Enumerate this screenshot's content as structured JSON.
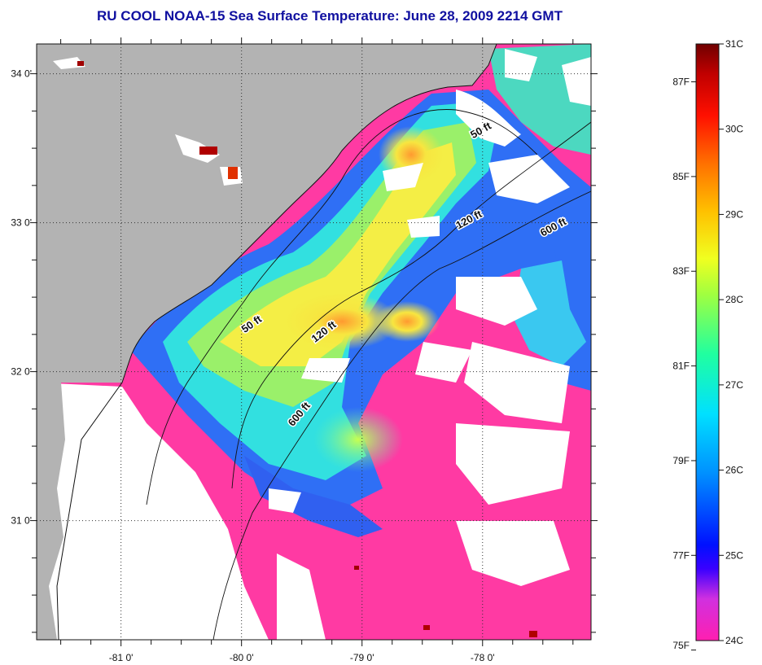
{
  "title": "RU COOL  NOAA-15  Sea Surface Temperature:  June 28, 2009 2214 GMT",
  "map": {
    "lon_range": [
      -81.7,
      -77.1
    ],
    "lat_range": [
      30.2,
      34.2
    ],
    "lat_ticks": [
      {
        "value": 34,
        "label": "34 0'"
      },
      {
        "value": 33,
        "label": "33 0'"
      },
      {
        "value": 32,
        "label": "32 0'"
      },
      {
        "value": 31,
        "label": "31 0'"
      }
    ],
    "lon_ticks": [
      {
        "value": -81,
        "label": "-81 0'"
      },
      {
        "value": -80,
        "label": "-80 0'"
      },
      {
        "value": -79,
        "label": "-79 0'"
      },
      {
        "value": -78,
        "label": "-78 0'"
      }
    ],
    "contours": [
      {
        "label": "50 ft",
        "lon": -78.0,
        "lat": 33.6,
        "angle": -30
      },
      {
        "label": "50 ft",
        "lon": -79.9,
        "lat": 32.3,
        "angle": -35
      },
      {
        "label": "120 ft",
        "lon": -78.1,
        "lat": 33.0,
        "angle": -28
      },
      {
        "label": "120 ft",
        "lon": -79.3,
        "lat": 32.25,
        "angle": -38
      },
      {
        "label": "600 ft",
        "lon": -77.4,
        "lat": 32.95,
        "angle": -28
      },
      {
        "label": "600 ft",
        "lon": -79.5,
        "lat": 31.7,
        "angle": -50
      }
    ],
    "colors": {
      "land": "#b3b3b3",
      "cloud": "#ffffff",
      "cool_water": "#ff3aa3",
      "warm_water": "#f0f060"
    }
  },
  "colorbar": {
    "celsius": [
      "31C",
      "30C",
      "29C",
      "28C",
      "27C",
      "26C",
      "25C",
      "24C"
    ],
    "fahrenheit": [
      "87F",
      "85F",
      "83F",
      "81F",
      "79F",
      "77F",
      "75F"
    ]
  }
}
